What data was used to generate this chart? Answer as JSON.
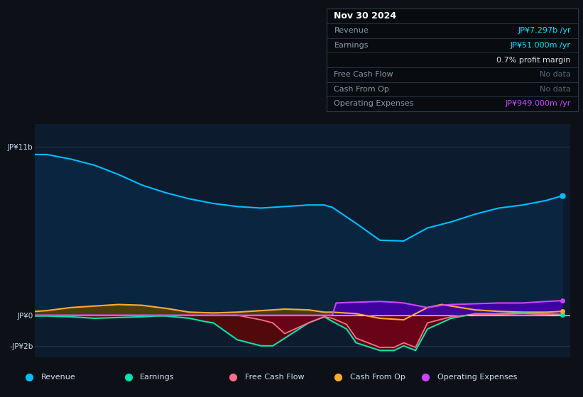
{
  "background_color": "#0d1117",
  "plot_bg_color": "#0d1b2e",
  "revenue_color": "#00bfff",
  "revenue_fill": "#0a2540",
  "earnings_color": "#00e5b0",
  "earnings_fill_neg": "#5a0808",
  "earnings_fill_pos": "#003322",
  "fcf_color": "#ff6b8a",
  "fcf_fill_neg": "#7a0020",
  "cashfromop_color": "#ffaa33",
  "cashfromop_fill_pos": "#554400",
  "cashfromop_fill_neg": "#443300",
  "opex_color": "#cc44ff",
  "opex_fill": "#4400aa",
  "legend_items": [
    {
      "label": "Revenue",
      "color": "#00bfff"
    },
    {
      "label": "Earnings",
      "color": "#00e5b0"
    },
    {
      "label": "Free Cash Flow",
      "color": "#ff6b8a"
    },
    {
      "label": "Cash From Op",
      "color": "#ffaa33"
    },
    {
      "label": "Operating Expenses",
      "color": "#cc44ff"
    }
  ],
  "revenue_x": [
    2013.75,
    2014.0,
    2014.5,
    2015.0,
    2015.5,
    2016.0,
    2016.5,
    2017.0,
    2017.5,
    2018.0,
    2018.5,
    2019.0,
    2019.5,
    2019.83,
    2020.0,
    2020.5,
    2021.0,
    2021.5,
    2022.0,
    2022.5,
    2023.0,
    2023.5,
    2024.0,
    2024.5,
    2024.83
  ],
  "revenue_y": [
    10500000000.0,
    10500000000.0,
    10200000000.0,
    9800000000.0,
    9200000000.0,
    8500000000.0,
    8000000000.0,
    7600000000.0,
    7300000000.0,
    7100000000.0,
    7000000000.0,
    7100000000.0,
    7200000000.0,
    7200000000.0,
    7050000000.0,
    6000000000.0,
    4900000000.0,
    4850000000.0,
    5700000000.0,
    6100000000.0,
    6600000000.0,
    7000000000.0,
    7200000000.0,
    7500000000.0,
    7800000000.0
  ],
  "earnings_x": [
    2013.75,
    2014.0,
    2014.5,
    2015.0,
    2015.5,
    2016.0,
    2016.3,
    2016.5,
    2017.0,
    2017.3,
    2017.5,
    2018.0,
    2018.5,
    2018.75,
    2019.0,
    2019.5,
    2019.83,
    2020.0,
    2020.3,
    2020.5,
    2021.0,
    2021.3,
    2021.5,
    2021.75,
    2022.0,
    2022.5,
    2023.0,
    2023.5,
    2024.0,
    2024.5,
    2024.83
  ],
  "earnings_y": [
    -50000000.0,
    -50000000.0,
    -100000000.0,
    -200000000.0,
    -150000000.0,
    -100000000.0,
    -50000000.0,
    -50000000.0,
    -200000000.0,
    -400000000.0,
    -500000000.0,
    -1600000000.0,
    -2000000000.0,
    -2000000000.0,
    -1500000000.0,
    -500000000.0,
    -100000000.0,
    -400000000.0,
    -900000000.0,
    -1800000000.0,
    -2300000000.0,
    -2300000000.0,
    -2000000000.0,
    -2300000000.0,
    -900000000.0,
    -200000000.0,
    100000000.0,
    100000000.0,
    150000000.0,
    100000000.0,
    50000000.0
  ],
  "fcf_x": [
    2013.75,
    2014.0,
    2015.0,
    2016.0,
    2017.0,
    2017.5,
    2018.0,
    2018.5,
    2018.75,
    2019.0,
    2019.5,
    2019.83,
    2020.0,
    2020.3,
    2020.5,
    2021.0,
    2021.3,
    2021.5,
    2021.75,
    2022.0,
    2022.5,
    2023.0,
    2023.5,
    2024.0,
    2024.5,
    2024.83
  ],
  "fcf_y": [
    0,
    0,
    0,
    0,
    0,
    0,
    0,
    -300000000.0,
    -500000000.0,
    -1200000000.0,
    -500000000.0,
    -100000000.0,
    -200000000.0,
    -600000000.0,
    -1500000000.0,
    -2100000000.0,
    -2100000000.0,
    -1800000000.0,
    -2100000000.0,
    -500000000.0,
    -100000000.0,
    50000000.0,
    50000000.0,
    100000000.0,
    50000000.0,
    0
  ],
  "cashfromop_x": [
    2013.75,
    2014.0,
    2014.5,
    2015.0,
    2015.5,
    2016.0,
    2016.5,
    2017.0,
    2017.5,
    2018.0,
    2018.5,
    2019.0,
    2019.5,
    2019.83,
    2020.0,
    2020.5,
    2021.0,
    2021.5,
    2022.0,
    2022.3,
    2022.5,
    2023.0,
    2023.5,
    2024.0,
    2024.5,
    2024.83
  ],
  "cashfromop_y": [
    250000000.0,
    300000000.0,
    500000000.0,
    600000000.0,
    700000000.0,
    650000000.0,
    450000000.0,
    200000000.0,
    150000000.0,
    200000000.0,
    300000000.0,
    400000000.0,
    350000000.0,
    200000000.0,
    200000000.0,
    100000000.0,
    -200000000.0,
    -300000000.0,
    500000000.0,
    700000000.0,
    600000000.0,
    350000000.0,
    250000000.0,
    200000000.0,
    200000000.0,
    250000000.0
  ],
  "opex_x": [
    2013.75,
    2019.75,
    2020.0,
    2020.08,
    2020.5,
    2021.0,
    2021.3,
    2021.5,
    2022.0,
    2022.3,
    2022.5,
    2023.0,
    2023.5,
    2024.0,
    2024.5,
    2024.83
  ],
  "opex_y": [
    0,
    0,
    0,
    800000000.0,
    850000000.0,
    900000000.0,
    850000000.0,
    800000000.0,
    500000000.0,
    650000000.0,
    700000000.0,
    750000000.0,
    800000000.0,
    800000000.0,
    900000000.0,
    950000000.0
  ],
  "xlim": [
    2013.75,
    2025.0
  ],
  "ylim": [
    -2800000000.0,
    12500000000.0
  ],
  "ytick_vals": [
    11000000000.0,
    0,
    -2000000000.0
  ],
  "ytick_labels": [
    "JP¥11b",
    "JP¥0",
    "-JP¥2b"
  ],
  "xtick_vals": [
    2015,
    2016,
    2017,
    2018,
    2019,
    2020,
    2021,
    2022,
    2023,
    2024
  ]
}
